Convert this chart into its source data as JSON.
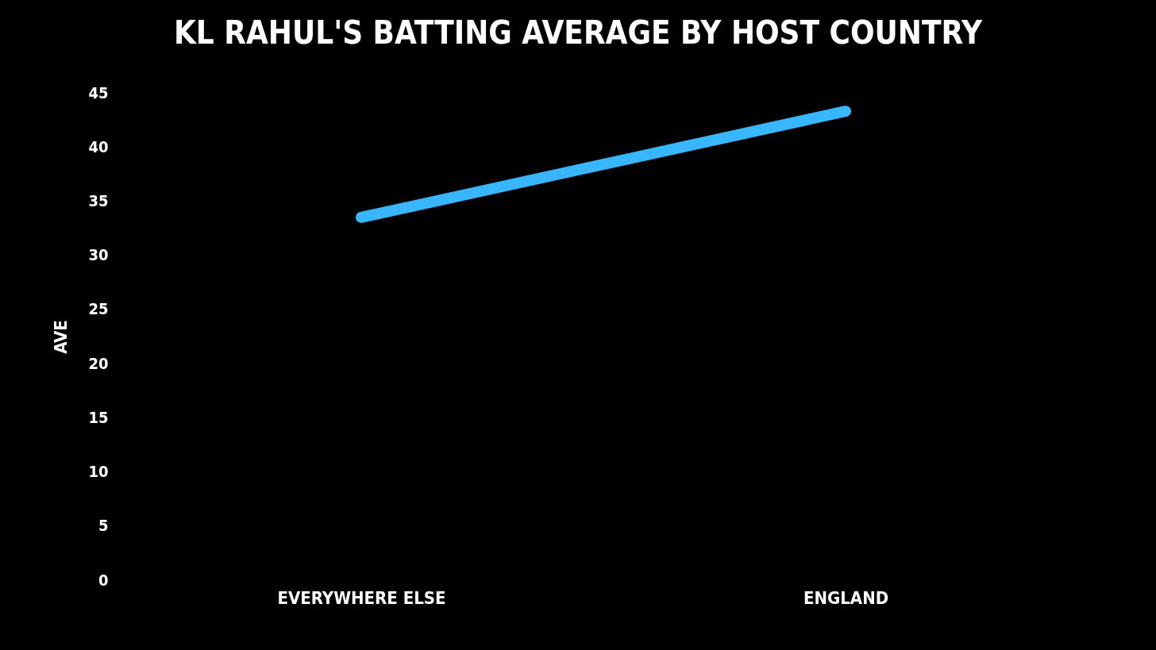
{
  "chart_data": {
    "type": "line",
    "title": "KL RAHUL'S BATTING AVERAGE BY HOST COUNTRY",
    "ylabel": "AVE",
    "categories": [
      "EVERYWHERE ELSE",
      "ENGLAND"
    ],
    "series": [
      {
        "color": "#38b6ff",
        "values": [
          33.5,
          43.3
        ]
      }
    ],
    "ylim": [
      0,
      45
    ],
    "yticks": [
      0,
      5,
      10,
      15,
      20,
      25,
      30,
      35,
      40,
      45
    ],
    "grid": false,
    "legend": false,
    "marker": "none",
    "line_style": "solid"
  }
}
